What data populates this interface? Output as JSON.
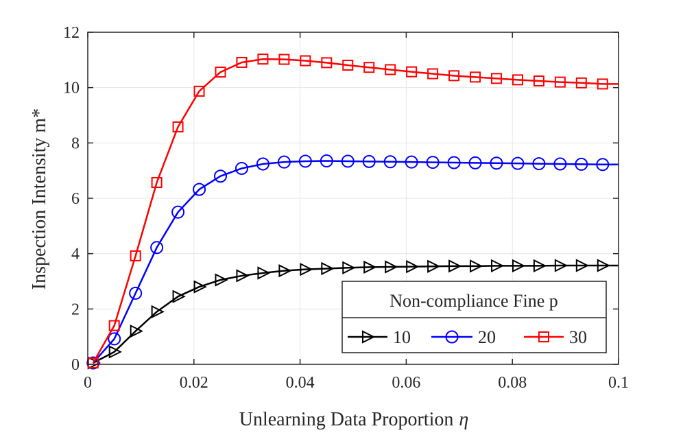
{
  "chart_data": {
    "type": "line",
    "title": "",
    "xlabel": "Unlearning Data Proportion",
    "xlabel_symbol": "η",
    "ylabel": "Inspection Intensity m*",
    "xlim": [
      0,
      0.1
    ],
    "ylim": [
      0,
      12
    ],
    "xticks": [
      0,
      0.02,
      0.04,
      0.06,
      0.08,
      0.1
    ],
    "xtick_labels": [
      "0",
      "0.02",
      "0.04",
      "0.06",
      "0.08",
      "0.1"
    ],
    "yticks": [
      0,
      2,
      4,
      6,
      8,
      10,
      12
    ],
    "ytick_labels": [
      "0",
      "2",
      "4",
      "6",
      "8",
      "10",
      "12"
    ],
    "grid": true,
    "legend": {
      "title": "Non-compliance Fine p",
      "placement": "bottom-right",
      "labels": [
        "10",
        "20",
        "30"
      ]
    },
    "x": [
      0.001,
      0.005,
      0.009,
      0.013,
      0.017,
      0.021,
      0.025,
      0.029,
      0.033,
      0.037,
      0.041,
      0.045,
      0.049,
      0.053,
      0.057,
      0.061,
      0.065,
      0.069,
      0.073,
      0.077,
      0.081,
      0.085,
      0.089,
      0.093,
      0.097
    ],
    "series": [
      {
        "name": "10",
        "color": "#000000",
        "marker": "triangle-right",
        "values": [
          0.05,
          0.45,
          1.2,
          1.9,
          2.45,
          2.8,
          3.05,
          3.2,
          3.3,
          3.38,
          3.43,
          3.46,
          3.49,
          3.51,
          3.52,
          3.53,
          3.54,
          3.55,
          3.55,
          3.56,
          3.56,
          3.56,
          3.57,
          3.57,
          3.57
        ]
      },
      {
        "name": "20",
        "color": "#0000ff",
        "marker": "circle",
        "values": [
          0.05,
          0.92,
          2.57,
          4.22,
          5.5,
          6.32,
          6.8,
          7.08,
          7.24,
          7.31,
          7.34,
          7.35,
          7.34,
          7.33,
          7.32,
          7.31,
          7.3,
          7.29,
          7.28,
          7.27,
          7.26,
          7.25,
          7.24,
          7.23,
          7.22
        ]
      },
      {
        "name": "30",
        "color": "#ff0000",
        "marker": "square",
        "values": [
          0.05,
          1.4,
          3.92,
          6.57,
          8.58,
          9.87,
          10.56,
          10.91,
          11.03,
          11.02,
          10.97,
          10.9,
          10.81,
          10.73,
          10.65,
          10.57,
          10.5,
          10.43,
          10.38,
          10.33,
          10.28,
          10.24,
          10.2,
          10.17,
          10.13
        ]
      }
    ]
  }
}
